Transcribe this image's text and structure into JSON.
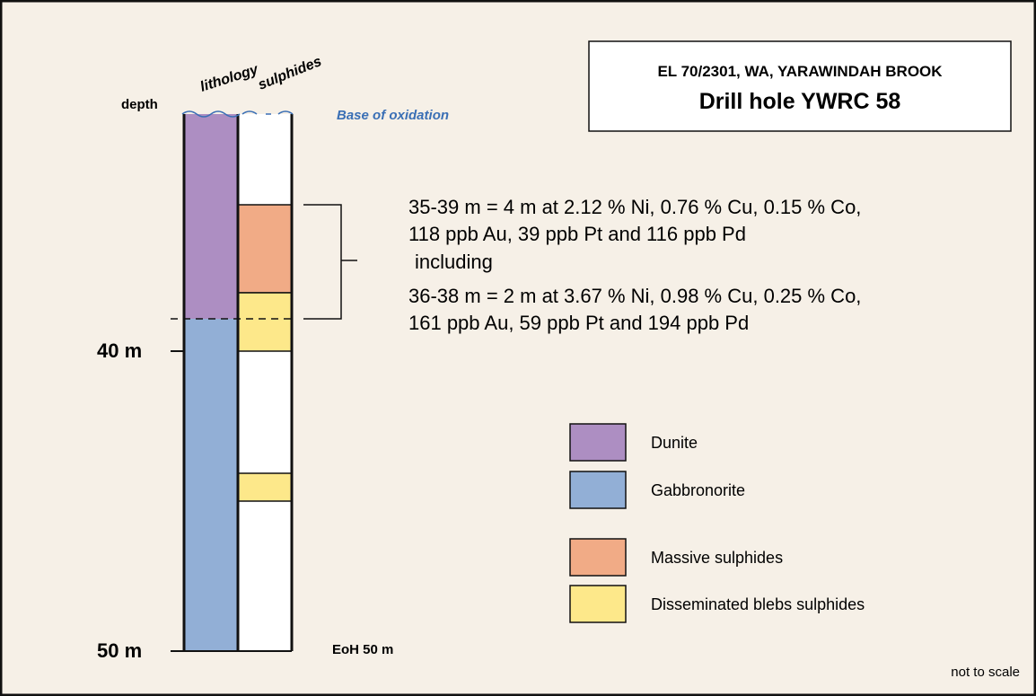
{
  "title_box": {
    "line1": "EL 70/2301, WA, YARAWINDAH BROOK",
    "line2": "Drill hole YWRC 58"
  },
  "column_headers": {
    "depth": "depth",
    "lithology": "lithology",
    "sulphides": "sulphides"
  },
  "base_label": "Base of oxidation",
  "depth_labels": [
    "40 m",
    "50 m"
  ],
  "end_label": "EoH 50 m",
  "intercept": {
    "main": [
      "35-39 m = 4 m at 2.12 % Ni, 0.76 % Cu, 0.15 % Co,",
      "118 ppb Au, 39 ppb Pt and 116 ppb Pd"
    ],
    "connector": "including",
    "sub": [
      "36-38 m = 2 m at 3.67 % Ni, 0.98 % Cu, 0.25 % Co,",
      "161 ppb Au, 59 ppb Pt and 194 ppb Pd"
    ]
  },
  "legend": [
    "Dunite",
    "Gabbronorite",
    "Massive sulphides",
    "Disseminated blebs sulphides"
  ],
  "footnote": "not to scale"
}
